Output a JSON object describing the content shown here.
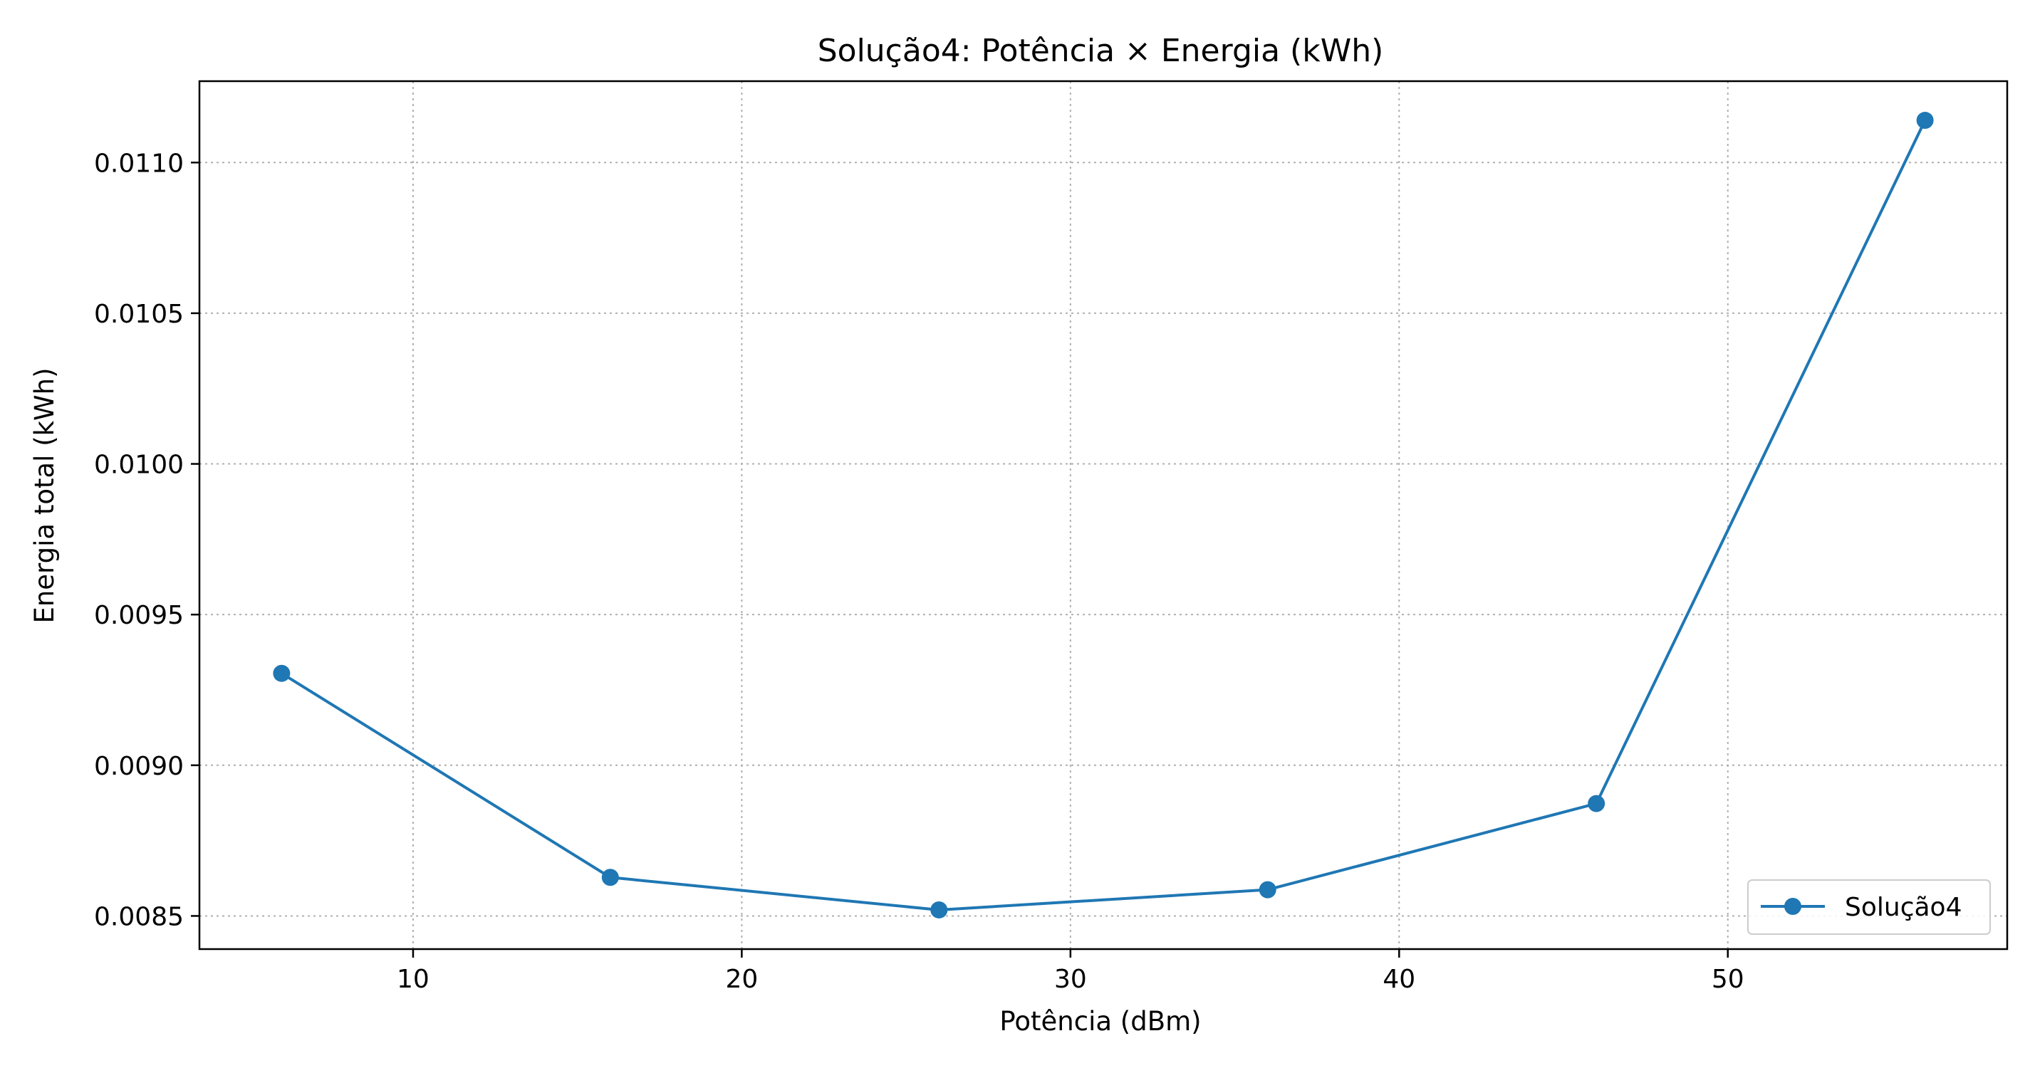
{
  "chart_data": {
    "type": "line",
    "title": "Solução4: Potência × Energia (kWh)",
    "xlabel": "Potência (dBm)",
    "ylabel": "Energia total (kWh)",
    "xlim": [
      3.5,
      58.5
    ],
    "ylim": [
      0.00839,
      0.01127
    ],
    "xticks": [
      10,
      20,
      30,
      40,
      50
    ],
    "xtick_labels": [
      "10",
      "20",
      "30",
      "40",
      "50"
    ],
    "yticks": [
      0.0085,
      0.009,
      0.0095,
      0.01,
      0.0105,
      0.011
    ],
    "ytick_labels": [
      "0.0085",
      "0.0090",
      "0.0095",
      "0.0100",
      "0.0105",
      "0.0110"
    ],
    "grid": true,
    "legend_position": "lower-right",
    "series": [
      {
        "name": "Solução4",
        "color": "#1f77b4",
        "x": [
          6,
          16,
          26,
          36,
          46,
          56
        ],
        "y": [
          0.009305,
          0.008628,
          0.00852,
          0.008587,
          0.008873,
          0.01114
        ]
      }
    ]
  }
}
